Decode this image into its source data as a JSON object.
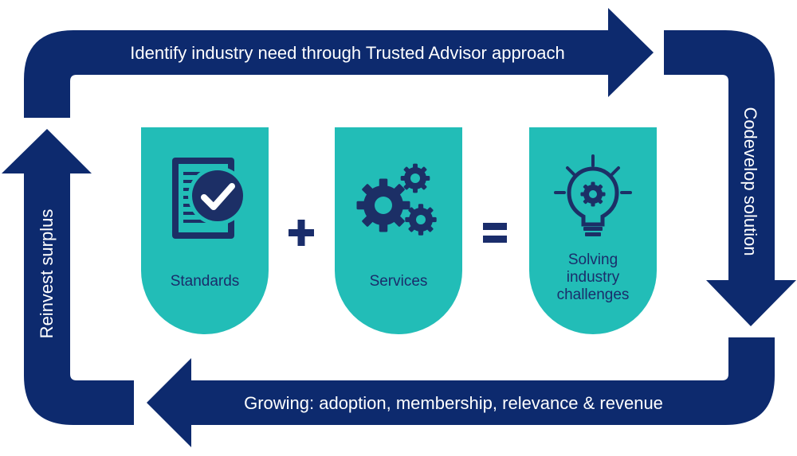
{
  "colors": {
    "arrow": "#0d2a6e",
    "card": "#22bdb7",
    "icon": "#1c2f66",
    "operator": "#1a2d6b",
    "label": "#1a2d6b",
    "arrow_text": "#ffffff"
  },
  "arrows": {
    "top": "Identify industry need through Trusted Advisor approach",
    "right": "Codevelop solution",
    "bottom": "Growing: adoption, membership, relevance & revenue",
    "left": "Reinvest surplus"
  },
  "cards": [
    {
      "label": "Standards",
      "icon": "checklist-document-icon"
    },
    {
      "label": "Services",
      "icon": "gears-icon"
    },
    {
      "label_lines": [
        "Solving",
        "industry",
        "challenges"
      ],
      "icon": "lightbulb-gear-icon"
    }
  ],
  "operators": {
    "plus": "plus-operator",
    "equals": "equals-operator"
  }
}
